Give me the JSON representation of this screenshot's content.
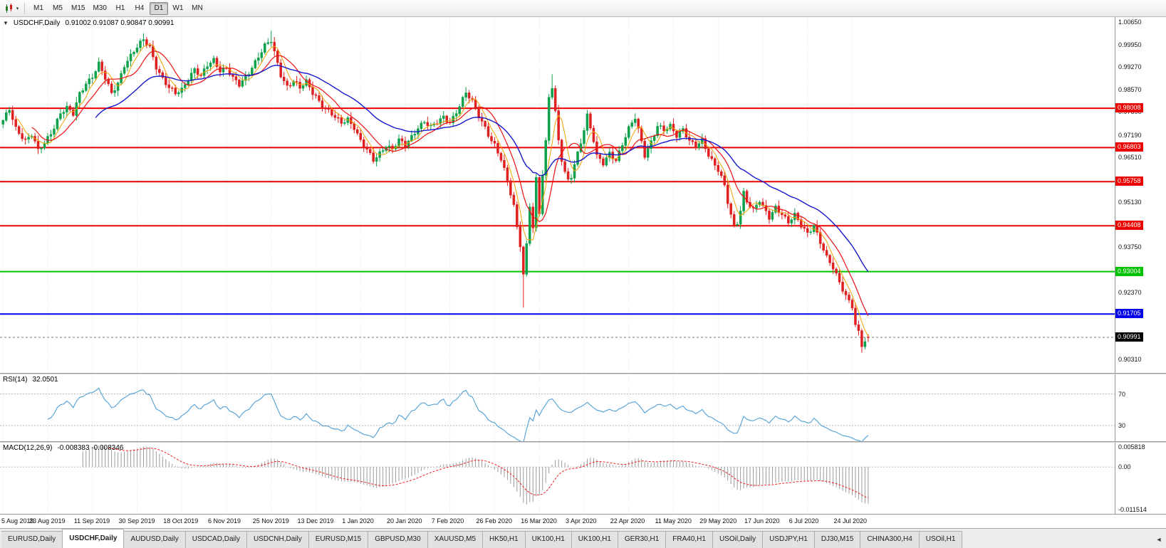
{
  "window": {
    "symbol_title": "USDCHF,Daily",
    "ohlc": "0.91002 0.91087 0.90847 0.90991"
  },
  "toolbar": {
    "timeframes": [
      "M1",
      "M5",
      "M15",
      "M30",
      "H1",
      "H4",
      "D1",
      "W1",
      "MN"
    ],
    "active": "D1"
  },
  "glyphs": {
    "collapse_arrow": "▼",
    "tab_scroll_left": "◄"
  },
  "rsi": {
    "label": "RSI(14)",
    "value": "32.0501",
    "level_lines": [
      70,
      30
    ]
  },
  "macd": {
    "label": "MACD(12,26,9)",
    "values": "-0.008383 -0.008346",
    "axis_labels": [
      {
        "text": "0.005818",
        "value": 0.005818
      },
      {
        "text": "0.00",
        "value": 0
      },
      {
        "text": "-0.011514",
        "value": -0.011514
      }
    ]
  },
  "dates": [
    "5 Aug 2019",
    "23 Aug 2019",
    "11 Sep 2019",
    "30 Sep 2019",
    "18 Oct 2019",
    "6 Nov 2019",
    "25 Nov 2019",
    "13 Dec 2019",
    "1 Jan 2020",
    "20 Jan 2020",
    "7 Feb 2020",
    "26 Feb 2020",
    "16 Mar 2020",
    "3 Apr 2020",
    "22 Apr 2020",
    "11 May 2020",
    "29 May 2020",
    "17 Jun 2020",
    "6 Jul 2020",
    "24 Jul 2020"
  ],
  "tabs": [
    {
      "label": "EURUSD,Daily"
    },
    {
      "label": "USDCHF,Daily",
      "active": true
    },
    {
      "label": "AUDUSD,Daily"
    },
    {
      "label": "USDCAD,Daily"
    },
    {
      "label": "USDCNH,Daily"
    },
    {
      "label": "EURUSD,M15"
    },
    {
      "label": "GBPUSD,M30"
    },
    {
      "label": "XAUUSD,M5"
    },
    {
      "label": "HK50,H1"
    },
    {
      "label": "UK100,H1"
    },
    {
      "label": "UK100,H1"
    },
    {
      "label": "GER30,H1"
    },
    {
      "label": "FRA40,H1"
    },
    {
      "label": "USOil,Daily"
    },
    {
      "label": "USDJPY,H1"
    },
    {
      "label": "DJ30,M15"
    },
    {
      "label": "CHINA300,H4"
    },
    {
      "label": "USOil,H1"
    }
  ],
  "colors": {
    "bull": "#0da14b",
    "bear": "#de2020",
    "ma_fast": "#f0a100",
    "ma_mid": "#ee1111",
    "ma_slow": "#1717cc",
    "rsi_line": "#4f9fd6",
    "macd_hist": "#9b9b9b",
    "macd_signal": "#ee2222",
    "grid": "#e2e2e2",
    "price_badge": "#000000",
    "level_red": "#ee0000",
    "level_green": "#00c300",
    "level_blue": "#0000ee"
  },
  "chart_data": {
    "type": "candlestick",
    "symbol": "USDCHF",
    "timeframe": "Daily",
    "num_candles": 272,
    "date_tick_interval": 14,
    "right_shift": 0.779,
    "price_range": [
      0.899,
      1.008
    ],
    "rsi_range": [
      10,
      95
    ],
    "macd_range": [
      -0.0125,
      0.0065
    ],
    "price_axis_labels": [
      "1.00650",
      "0.99950",
      "0.99270",
      "0.98570",
      "0.97890",
      "0.97190",
      "0.96510",
      "0.95830",
      "0.95130",
      "0.94450",
      "0.93750",
      "0.93070",
      "0.92370",
      "0.91690",
      "0.91010",
      "0.90310"
    ],
    "levels": [
      {
        "price": 0.98008,
        "label": "0.98008",
        "color": "#ee0000",
        "width": 2
      },
      {
        "price": 0.96803,
        "label": "0.96803",
        "color": "#ee0000",
        "width": 2
      },
      {
        "price": 0.95758,
        "label": "0.95758",
        "color": "#ee0000",
        "width": 2
      },
      {
        "price": 0.94408,
        "label": "0.94408",
        "color": "#ee0000",
        "width": 2
      },
      {
        "price": 0.93004,
        "label": "0.93004",
        "color": "#00c300",
        "width": 2
      },
      {
        "price": 0.91705,
        "label": "0.91705",
        "color": "#0000ee",
        "width": 2
      }
    ],
    "current_price": {
      "value": 0.90991,
      "label": "0.90991"
    },
    "last_candle": {
      "open": 0.91002,
      "high": 0.91087,
      "low": 0.90847,
      "close": 0.90991
    },
    "moving_averages": [
      {
        "period": 5,
        "type": "sma",
        "color": "#f0a100",
        "width": 1
      },
      {
        "period": 10,
        "type": "sma",
        "color": "#ee1111",
        "width": 1.2
      },
      {
        "period": 30,
        "type": "ema",
        "color": "#1717cc",
        "width": 1.4
      }
    ],
    "wick_overrides": {
      "44": {
        "high": 1.003
      },
      "84": {
        "high": 1.0038
      },
      "163": {
        "low": 0.919
      },
      "172": {
        "high": 0.9905
      },
      "269": {
        "low": 0.9052
      }
    },
    "close_anchors": [
      [
        0,
        0.976
      ],
      [
        2,
        0.9795
      ],
      [
        4,
        0.974
      ],
      [
        7,
        0.9705
      ],
      [
        9,
        0.972
      ],
      [
        11,
        0.9668
      ],
      [
        13,
        0.9692
      ],
      [
        16,
        0.9745
      ],
      [
        18,
        0.9788
      ],
      [
        20,
        0.98
      ],
      [
        22,
        0.978
      ],
      [
        24,
        0.9845
      ],
      [
        26,
        0.988
      ],
      [
        28,
        0.99
      ],
      [
        30,
        0.9935
      ],
      [
        32,
        0.989
      ],
      [
        34,
        0.9845
      ],
      [
        36,
        0.988
      ],
      [
        38,
        0.9935
      ],
      [
        40,
        0.996
      ],
      [
        42,
        0.9985
      ],
      [
        44,
        1.001
      ],
      [
        46,
        0.999
      ],
      [
        48,
        0.993
      ],
      [
        50,
        0.989
      ],
      [
        52,
        0.986
      ],
      [
        54,
        0.9845
      ],
      [
        56,
        0.986
      ],
      [
        58,
        0.9895
      ],
      [
        60,
        0.992
      ],
      [
        62,
        0.9895
      ],
      [
        64,
        0.993
      ],
      [
        66,
        0.995
      ],
      [
        68,
        0.992
      ],
      [
        70,
        0.9925
      ],
      [
        72,
        0.989
      ],
      [
        74,
        0.987
      ],
      [
        76,
        0.9895
      ],
      [
        78,
        0.993
      ],
      [
        80,
        0.996
      ],
      [
        82,
        0.999
      ],
      [
        84,
        1.0005
      ],
      [
        85,
        0.997
      ],
      [
        87,
        0.9905
      ],
      [
        89,
        0.987
      ],
      [
        91,
        0.9885
      ],
      [
        93,
        0.986
      ],
      [
        95,
        0.988
      ],
      [
        97,
        0.985
      ],
      [
        98,
        0.984
      ],
      [
        100,
        0.981
      ],
      [
        102,
        0.979
      ],
      [
        104,
        0.977
      ],
      [
        106,
        0.9755
      ],
      [
        108,
        0.977
      ],
      [
        110,
        0.9745
      ],
      [
        112,
        0.97
      ],
      [
        114,
        0.967
      ],
      [
        116,
        0.964
      ],
      [
        118,
        0.9665
      ],
      [
        120,
        0.969
      ],
      [
        122,
        0.9675
      ],
      [
        124,
        0.97
      ],
      [
        126,
        0.9685
      ],
      [
        128,
        0.9715
      ],
      [
        130,
        0.9745
      ],
      [
        132,
        0.976
      ],
      [
        134,
        0.974
      ],
      [
        136,
        0.9755
      ],
      [
        138,
        0.9775
      ],
      [
        140,
        0.976
      ],
      [
        142,
        0.979
      ],
      [
        144,
        0.9825
      ],
      [
        145,
        0.9845
      ],
      [
        147,
        0.982
      ],
      [
        149,
        0.978
      ],
      [
        151,
        0.9745
      ],
      [
        153,
        0.97
      ],
      [
        154,
        0.9685
      ],
      [
        156,
        0.964
      ],
      [
        158,
        0.958
      ],
      [
        160,
        0.9505
      ],
      [
        161,
        0.944
      ],
      [
        162,
        0.9385
      ],
      [
        163,
        0.929
      ],
      [
        164,
        0.938
      ],
      [
        165,
        0.95
      ],
      [
        166,
        0.943
      ],
      [
        167,
        0.958
      ],
      [
        168,
        0.948
      ],
      [
        169,
        0.96
      ],
      [
        170,
        0.97
      ],
      [
        171,
        0.984
      ],
      [
        172,
        0.987
      ],
      [
        173,
        0.979
      ],
      [
        174,
        0.97
      ],
      [
        175,
        0.964
      ],
      [
        176,
        0.96
      ],
      [
        177,
        0.9575
      ],
      [
        178,
        0.959
      ],
      [
        179,
        0.963
      ],
      [
        181,
        0.97
      ],
      [
        183,
        0.978
      ],
      [
        185,
        0.97
      ],
      [
        186,
        0.965
      ],
      [
        188,
        0.963
      ],
      [
        190,
        0.9665
      ],
      [
        192,
        0.9645
      ],
      [
        194,
        0.969
      ],
      [
        196,
        0.9735
      ],
      [
        198,
        0.977
      ],
      [
        200,
        0.97
      ],
      [
        201,
        0.966
      ],
      [
        203,
        0.97
      ],
      [
        205,
        0.9745
      ],
      [
        207,
        0.973
      ],
      [
        209,
        0.9745
      ],
      [
        211,
        0.972
      ],
      [
        213,
        0.974
      ],
      [
        215,
        0.97
      ],
      [
        217,
        0.968
      ],
      [
        219,
        0.97
      ],
      [
        221,
        0.966
      ],
      [
        223,
        0.963
      ],
      [
        224,
        0.9615
      ],
      [
        225,
        0.959
      ],
      [
        226,
        0.956
      ],
      [
        227,
        0.951
      ],
      [
        228,
        0.947
      ],
      [
        229,
        0.9435
      ],
      [
        230,
        0.945
      ],
      [
        231,
        0.949
      ],
      [
        232,
        0.9545
      ],
      [
        233,
        0.952
      ],
      [
        235,
        0.949
      ],
      [
        237,
        0.9515
      ],
      [
        238,
        0.9495
      ],
      [
        240,
        0.9465
      ],
      [
        242,
        0.95
      ],
      [
        244,
        0.948
      ],
      [
        246,
        0.945
      ],
      [
        248,
        0.947
      ],
      [
        250,
        0.944
      ],
      [
        252,
        0.942
      ],
      [
        254,
        0.9445
      ],
      [
        256,
        0.939
      ],
      [
        258,
        0.934
      ],
      [
        260,
        0.931
      ],
      [
        262,
        0.927
      ],
      [
        264,
        0.923
      ],
      [
        266,
        0.9195
      ],
      [
        267,
        0.9135
      ],
      [
        268,
        0.911
      ],
      [
        269,
        0.907
      ],
      [
        270,
        0.9085
      ],
      [
        271,
        0.90991
      ]
    ]
  }
}
